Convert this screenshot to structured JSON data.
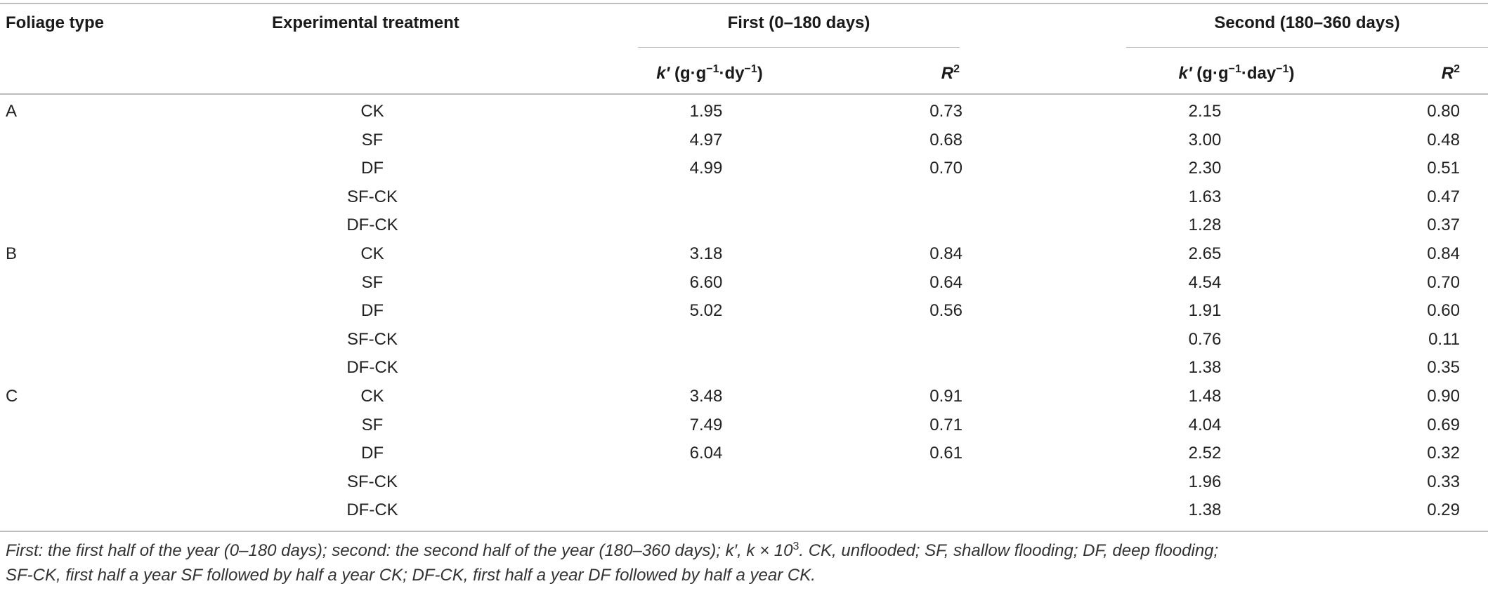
{
  "headers": {
    "foliage_type": "Foliage type",
    "treatment": "Experimental treatment",
    "first": "First (0–180 days)",
    "second": "Second (180–360 days)",
    "k_first_prefix": "k′",
    "k_first_unit_a": " (g·g",
    "k_first_sup1": "−1",
    "k_first_unit_b": "·dy",
    "k_first_sup2": "−1",
    "k_first_unit_c": ")",
    "k_second_prefix": "k′",
    "k_second_unit_a": " (g·g",
    "k_second_sup1": "−1",
    "k_second_unit_b": "·day",
    "k_second_sup2": "−1",
    "k_second_unit_c": ")",
    "r2_letter": "R",
    "r2_sup": "2"
  },
  "rows": [
    {
      "group": "A",
      "treatment": "CK",
      "k1": "1.95",
      "r1": "0.73",
      "k2": "2.15",
      "r2": "0.80"
    },
    {
      "group": "",
      "treatment": "SF",
      "k1": "4.97",
      "r1": "0.68",
      "k2": "3.00",
      "r2": "0.48"
    },
    {
      "group": "",
      "treatment": "DF",
      "k1": "4.99",
      "r1": "0.70",
      "k2": "2.30",
      "r2": "0.51"
    },
    {
      "group": "",
      "treatment": "SF-CK",
      "k1": "",
      "r1": "",
      "k2": "1.63",
      "r2": "0.47"
    },
    {
      "group": "",
      "treatment": "DF-CK",
      "k1": "",
      "r1": "",
      "k2": "1.28",
      "r2": "0.37"
    },
    {
      "group": "B",
      "treatment": "CK",
      "k1": "3.18",
      "r1": "0.84",
      "k2": "2.65",
      "r2": "0.84"
    },
    {
      "group": "",
      "treatment": "SF",
      "k1": "6.60",
      "r1": "0.64",
      "k2": "4.54",
      "r2": "0.70"
    },
    {
      "group": "",
      "treatment": "DF",
      "k1": "5.02",
      "r1": "0.56",
      "k2": "1.91",
      "r2": "0.60"
    },
    {
      "group": "",
      "treatment": "SF-CK",
      "k1": "",
      "r1": "",
      "k2": "0.76",
      "r2": "0.11"
    },
    {
      "group": "",
      "treatment": "DF-CK",
      "k1": "",
      "r1": "",
      "k2": "1.38",
      "r2": "0.35"
    },
    {
      "group": "C",
      "treatment": "CK",
      "k1": "3.48",
      "r1": "0.91",
      "k2": "1.48",
      "r2": "0.90"
    },
    {
      "group": "",
      "treatment": "SF",
      "k1": "7.49",
      "r1": "0.71",
      "k2": "4.04",
      "r2": "0.69"
    },
    {
      "group": "",
      "treatment": "DF",
      "k1": "6.04",
      "r1": "0.61",
      "k2": "2.52",
      "r2": "0.32"
    },
    {
      "group": "",
      "treatment": "SF-CK",
      "k1": "",
      "r1": "",
      "k2": "1.96",
      "r2": "0.33"
    },
    {
      "group": "",
      "treatment": "DF-CK",
      "k1": "",
      "r1": "",
      "k2": "1.38",
      "r2": "0.29"
    }
  ],
  "footnote": {
    "line1_a": "First: the first half of the year (0–180 days); second: the second half of the year (180–360 days); k′, k × 10",
    "line1_sup": "3",
    "line1_b": ". CK, unflooded; SF, shallow flooding; DF, deep flooding;",
    "line2": "SF-CK, first half a year SF followed by half a year CK; DF-CK, first half a year DF followed by half a year CK."
  }
}
